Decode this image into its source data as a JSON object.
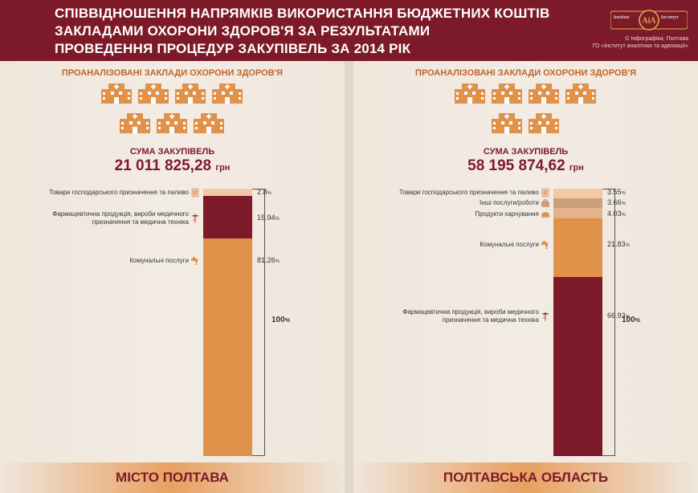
{
  "header": {
    "title_line1": "СПІВВІДНОШЕННЯ НАПРЯМКІВ ВИКОРИСТАННЯ БЮДЖЕТНИХ КОШТІВ",
    "title_line2": "ЗАКЛАДАМИ ОХОРОНИ ЗДОРОВ'Я  ЗА РЕЗУЛЬТАТАМИ",
    "title_line3": "ПРОВЕДЕННЯ ПРОЦЕДУР ЗАКУПІВЕЛЬ ЗА 2014 РІК",
    "logo_left": "Institute",
    "logo_mid": "AiA",
    "logo_right": "Інститут",
    "copyright_line1": "© Інфографіка, Полтава",
    "copyright_line2": "ГО «Інститут аналітики та адвокації»"
  },
  "colors": {
    "header": "#7d1a2a",
    "goods": "#f2c9a6",
    "pharma": "#7d1a2a",
    "utilities": "#e0914a",
    "other_services": "#c9a07a",
    "food": "#e3b38e"
  },
  "icons": [
    "hospital-icon",
    "document-icon",
    "caduceus-icon",
    "faucet-icon",
    "briefcase-icon",
    "bread-icon"
  ],
  "chart_data": [
    {
      "type": "bar",
      "stacked": true,
      "title": "МІСТО ПОЛТАВА",
      "institutions_label": "ПРОАНАЛІЗОВАНІ ЗАКЛАДИ ОХОРОНИ ЗДОРОВ'Я",
      "institutions_count": 7,
      "sum_label": "СУМА ЗАКУПІВЕЛЬ",
      "sum_value": "21 011 825,28",
      "sum_unit": "грн",
      "total_label": "100",
      "segments": [
        {
          "name": "Товари господарського призначення та паливо",
          "value": 2.8,
          "value_label": "2.8",
          "color": "#f2c9a6",
          "icon": "document-icon"
        },
        {
          "name": "Фармацевтична продукція, вироби медичного призначення та медична техніка",
          "value": 15.94,
          "value_label": "15.94",
          "color": "#7d1a2a",
          "icon": "caduceus-icon"
        },
        {
          "name": "Комунальні послуги",
          "value": 81.26,
          "value_label": "81.26",
          "color": "#e0914a",
          "icon": "faucet-icon"
        }
      ]
    },
    {
      "type": "bar",
      "stacked": true,
      "title": "ПОЛТАВСЬКА ОБЛАСТЬ",
      "institutions_label": "ПРОАНАЛІЗОВАНІ ЗАКЛАДИ ОХОРОНИ ЗДОРОВ'Я",
      "institutions_count": 6,
      "sum_label": "СУМА ЗАКУПІВЕЛЬ",
      "sum_value": "58 195 874,62",
      "sum_unit": "грн",
      "total_label": "100",
      "segments": [
        {
          "name": "Товари господарського призначення та паливо",
          "value": 3.55,
          "value_label": "3.55",
          "color": "#f2c9a6",
          "icon": "document-icon"
        },
        {
          "name": "Інші послуги/роботи",
          "value": 3.66,
          "value_label": "3.66",
          "color": "#c9a07a",
          "icon": "briefcase-icon"
        },
        {
          "name": "Продукти харчування",
          "value": 4.03,
          "value_label": "4.03",
          "color": "#e3b38e",
          "icon": "bread-icon"
        },
        {
          "name": "Комунальні послуги",
          "value": 21.83,
          "value_label": "21.83",
          "color": "#e0914a",
          "icon": "faucet-icon"
        },
        {
          "name": "Фармацевтична продукція, вироби медичного призначення та медична техніка",
          "value": 66.93,
          "value_label": "66.93",
          "color": "#7d1a2a",
          "icon": "caduceus-icon"
        }
      ]
    }
  ]
}
